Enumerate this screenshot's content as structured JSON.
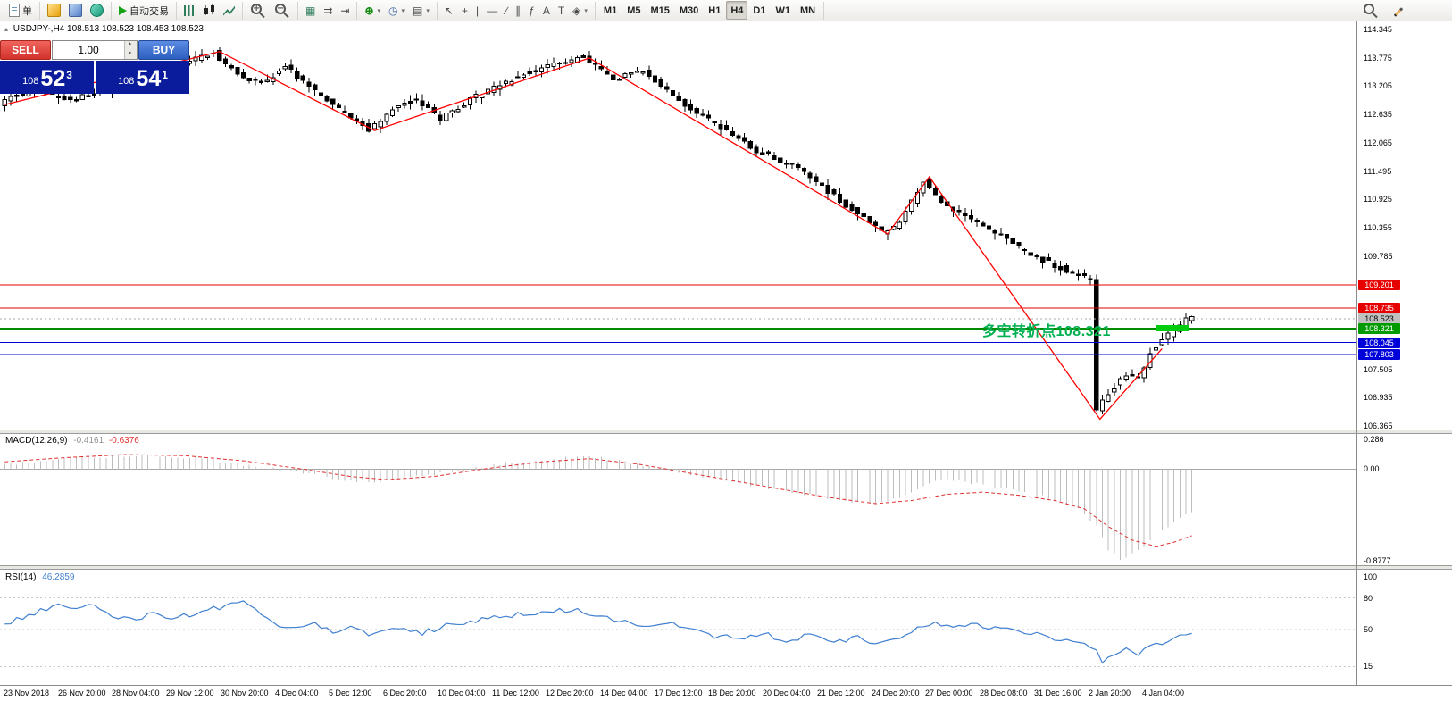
{
  "toolbar": {
    "groups": [
      {
        "name": "group-new-order",
        "items": [
          {
            "name": "new-order-button",
            "icon": "doc",
            "label": "单"
          }
        ]
      },
      {
        "name": "group-windows",
        "items": [
          {
            "name": "market-watch-button",
            "icon": "gold"
          },
          {
            "name": "data-window-button",
            "icon": "blue"
          },
          {
            "name": "mql5-community-button",
            "icon": "teal"
          }
        ]
      },
      {
        "name": "group-autotrading",
        "items": [
          {
            "name": "autotrading-button",
            "icon": "play",
            "label": "自动交易"
          }
        ]
      },
      {
        "name": "group-chart-type",
        "items": [
          {
            "name": "bar-chart-button",
            "icon": "bars"
          },
          {
            "name": "candlestick-chart-button",
            "icon": "candles"
          },
          {
            "name": "line-chart-button",
            "icon": "line"
          }
        ]
      },
      {
        "name": "group-zoom",
        "items": [
          {
            "name": "zoom-in-button",
            "icon": "zoom-in"
          },
          {
            "name": "zoom-out-button",
            "icon": "zoom-out"
          }
        ]
      },
      {
        "name": "group-arrange",
        "items": [
          {
            "name": "tile-windows-button",
            "glyph": "▦"
          },
          {
            "name": "auto-scroll-button",
            "glyph": "⇉"
          },
          {
            "name": "chart-shift-button",
            "glyph": "⇥"
          }
        ]
      },
      {
        "name": "group-insert",
        "items": [
          {
            "name": "indicators-button",
            "glyph": "⊕",
            "dropdown": true
          },
          {
            "name": "periods-button",
            "glyph": "◷",
            "dropdown": true
          },
          {
            "name": "templates-button",
            "glyph": "▤",
            "dropdown": true
          }
        ]
      },
      {
        "name": "group-tools",
        "items": [
          {
            "name": "cursor-button",
            "glyph": "↖"
          },
          {
            "name": "crosshair-button",
            "glyph": "+"
          },
          {
            "name": "vertical-line-button",
            "glyph": "|"
          },
          {
            "name": "horizontal-line-button",
            "glyph": "—"
          },
          {
            "name": "trendline-button",
            "glyph": "∕"
          },
          {
            "name": "channel-button",
            "glyph": "∥"
          },
          {
            "name": "fibonacci-button",
            "glyph": "ƒ"
          },
          {
            "name": "text-button",
            "glyph": "A"
          },
          {
            "name": "label-button",
            "glyph": "T"
          },
          {
            "name": "arrows-button",
            "glyph": "◈",
            "dropdown": true
          }
        ]
      },
      {
        "name": "group-timeframes",
        "items": [
          {
            "name": "timeframe-m1-button",
            "label": "M1",
            "tf": true
          },
          {
            "name": "timeframe-m5-button",
            "label": "M5",
            "tf": true
          },
          {
            "name": "timeframe-m15-button",
            "label": "M15",
            "tf": true
          },
          {
            "name": "timeframe-m30-button",
            "label": "M30",
            "tf": true
          },
          {
            "name": "timeframe-h1-button",
            "label": "H1",
            "tf": true
          },
          {
            "name": "timeframe-h4-button",
            "label": "H4",
            "tf": true,
            "active": true
          },
          {
            "name": "timeframe-d1-button",
            "label": "D1",
            "tf": true
          },
          {
            "name": "timeframe-w1-button",
            "label": "W1",
            "tf": true
          },
          {
            "name": "timeframe-mn-button",
            "label": "MN",
            "tf": true
          }
        ]
      }
    ],
    "right_items": [
      {
        "name": "search-button",
        "icon": "zoom"
      },
      {
        "name": "pencil-button",
        "icon": "pencil"
      }
    ]
  },
  "chart": {
    "header": {
      "symbol": "USDJPY-,H4",
      "ohlc": "108.513 108.523 108.453 108.523"
    },
    "trade_panel": {
      "sell_label": "SELL",
      "buy_label": "BUY",
      "volume": "1.00",
      "sell_price": {
        "prefix": "108",
        "big": "52",
        "sup": "3"
      },
      "buy_price": {
        "prefix": "108",
        "big": "54",
        "sup": "1"
      }
    },
    "annotation": {
      "text": "多空转折点108.321",
      "price": 108.321,
      "color": "#00B050",
      "marker_color": "#00CC10"
    }
  },
  "chart_data": {
    "type": "candlestick",
    "symbol": "USDJPY-",
    "timeframe": "H4",
    "last_ohlc": {
      "open": 108.513,
      "high": 108.523,
      "low": 108.453,
      "close": 108.523
    },
    "price_axis": {
      "max": 114.345,
      "min": 106.365,
      "ticks": [
        "114.345",
        "113.775",
        "113.205",
        "112.635",
        "112.065",
        "111.495",
        "110.925",
        "110.355",
        "109.785",
        "107.505",
        "106.935",
        "106.365"
      ]
    },
    "levels": [
      {
        "price": 109.201,
        "label": "109.201",
        "color": "#E60000",
        "style": "solid",
        "width": 1,
        "label_bg": "#E60000",
        "label_fg": "#FFFFFF"
      },
      {
        "price": 108.735,
        "label": "108.735",
        "color": "#E60000",
        "style": "solid",
        "width": 1,
        "label_bg": "#E60000",
        "label_fg": "#FFFFFF"
      },
      {
        "price": 108.523,
        "label": "108.523",
        "color": "#A8A8A8",
        "style": "dotted",
        "width": 1,
        "label_bg": "#C0C0C0",
        "label_fg": "#000000",
        "role": "current-price"
      },
      {
        "price": 108.321,
        "label": "108.321",
        "color": "#008A00",
        "style": "solid",
        "width": 2,
        "label_bg": "#009B00",
        "label_fg": "#FFFFFF"
      },
      {
        "price": 108.045,
        "label": "108.045",
        "color": "#0000D8",
        "style": "solid",
        "width": 1,
        "label_bg": "#0000D8",
        "label_fg": "#FFFFFF"
      },
      {
        "price": 107.803,
        "label": "107.803",
        "color": "#0000D8",
        "style": "solid",
        "width": 1,
        "label_bg": "#0000D8",
        "label_fg": "#FFFFFF"
      }
    ],
    "num_candles": 200,
    "candle_colors": {
      "bull_fill": "#FFFFFF",
      "bear_fill": "#000000",
      "outline": "#000000"
    },
    "price_path": [
      [
        0,
        112.85
      ],
      [
        6,
        113.15
      ],
      [
        12,
        112.92
      ],
      [
        20,
        113.2
      ],
      [
        28,
        113.55
      ],
      [
        36,
        113.88
      ],
      [
        40,
        113.45
      ],
      [
        44,
        113.25
      ],
      [
        48,
        113.6
      ],
      [
        55,
        112.9
      ],
      [
        62,
        112.32
      ],
      [
        66,
        112.75
      ],
      [
        70,
        112.95
      ],
      [
        74,
        112.55
      ],
      [
        80,
        113.0
      ],
      [
        88,
        113.45
      ],
      [
        98,
        113.8
      ],
      [
        103,
        113.35
      ],
      [
        108,
        113.5
      ],
      [
        114,
        112.9
      ],
      [
        120,
        112.45
      ],
      [
        127,
        111.9
      ],
      [
        134,
        111.55
      ],
      [
        141,
        110.9
      ],
      [
        148,
        110.28
      ],
      [
        151,
        110.45
      ],
      [
        155,
        111.3
      ],
      [
        158,
        110.85
      ],
      [
        163,
        110.55
      ],
      [
        168,
        110.2
      ],
      [
        173,
        109.8
      ],
      [
        178,
        109.55
      ],
      [
        183,
        109.3
      ],
      [
        184,
        106.7
      ],
      [
        185,
        106.9
      ],
      [
        187,
        107.15
      ],
      [
        189,
        107.4
      ],
      [
        191,
        107.3
      ],
      [
        193,
        107.85
      ],
      [
        195,
        108.1
      ],
      [
        197,
        108.3
      ],
      [
        199,
        108.52
      ],
      [
        200,
        108.52
      ]
    ],
    "zigzag": {
      "color": "#FF0000",
      "points": [
        [
          0,
          112.83
        ],
        [
          36,
          113.9
        ],
        [
          62,
          112.31
        ],
        [
          98,
          113.77
        ],
        [
          148,
          110.23
        ],
        [
          155,
          111.38
        ],
        [
          183.6,
          106.5
        ],
        [
          194,
          107.92
        ]
      ]
    },
    "time_labels": [
      "23 Nov 2018",
      "26 Nov 20:00",
      "28 Nov 04:00",
      "29 Nov 12:00",
      "30 Nov 20:00",
      "4 Dec 04:00",
      "5 Dec 12:00",
      "6 Dec 20:00",
      "10 Dec 04:00",
      "11 Dec 12:00",
      "12 Dec 20:00",
      "14 Dec 04:00",
      "17 Dec 12:00",
      "18 Dec 20:00",
      "20 Dec 04:00",
      "21 Dec 12:00",
      "24 Dec 20:00",
      "27 Dec 00:00",
      "28 Dec 08:00",
      "31 Dec 16:00",
      "2 Jan 20:00",
      "4 Jan 04:00"
    ],
    "macd": {
      "label": "MACD(12,26,9)",
      "value_main": "-0.4161",
      "value_signal": "-0.6376",
      "main_color": "#BDBDBD",
      "main_value_color": "#909090",
      "signal_color": "#E03030",
      "axis_ticks": [
        0.286,
        0,
        -0.8777
      ],
      "axis_tick_labels": [
        "0.286",
        "0.00",
        "-0.8777"
      ],
      "range": [
        -0.8777,
        0.286
      ],
      "hist_path": [
        [
          0,
          0.04
        ],
        [
          8,
          0.09
        ],
        [
          16,
          0.12
        ],
        [
          24,
          0.13
        ],
        [
          32,
          0.11
        ],
        [
          40,
          0.04
        ],
        [
          48,
          -0.02
        ],
        [
          56,
          -0.1
        ],
        [
          62,
          -0.13
        ],
        [
          68,
          -0.08
        ],
        [
          76,
          -0.02
        ],
        [
          84,
          0.06
        ],
        [
          92,
          0.1
        ],
        [
          98,
          0.12
        ],
        [
          104,
          0.07
        ],
        [
          110,
          0
        ],
        [
          116,
          -0.06
        ],
        [
          124,
          -0.14
        ],
        [
          132,
          -0.22
        ],
        [
          140,
          -0.3
        ],
        [
          146,
          -0.33
        ],
        [
          150,
          -0.27
        ],
        [
          154,
          -0.15
        ],
        [
          158,
          -0.1
        ],
        [
          163,
          -0.14
        ],
        [
          168,
          -0.19
        ],
        [
          174,
          -0.26
        ],
        [
          180,
          -0.38
        ],
        [
          183,
          -0.55
        ],
        [
          185,
          -0.78
        ],
        [
          187,
          -0.86
        ],
        [
          189,
          -0.82
        ],
        [
          191,
          -0.74
        ],
        [
          193,
          -0.64
        ],
        [
          195,
          -0.55
        ],
        [
          197,
          -0.47
        ],
        [
          199,
          -0.42
        ]
      ],
      "signal_path": [
        [
          0,
          0.07
        ],
        [
          10,
          0.11
        ],
        [
          20,
          0.14
        ],
        [
          30,
          0.13
        ],
        [
          40,
          0.08
        ],
        [
          50,
          0
        ],
        [
          58,
          -0.07
        ],
        [
          64,
          -0.1
        ],
        [
          72,
          -0.07
        ],
        [
          80,
          0
        ],
        [
          90,
          0.07
        ],
        [
          98,
          0.1
        ],
        [
          106,
          0.05
        ],
        [
          114,
          -0.03
        ],
        [
          122,
          -0.11
        ],
        [
          130,
          -0.19
        ],
        [
          138,
          -0.27
        ],
        [
          146,
          -0.33
        ],
        [
          152,
          -0.3
        ],
        [
          158,
          -0.24
        ],
        [
          164,
          -0.22
        ],
        [
          170,
          -0.25
        ],
        [
          176,
          -0.3
        ],
        [
          181,
          -0.38
        ],
        [
          185,
          -0.55
        ],
        [
          189,
          -0.68
        ],
        [
          193,
          -0.74
        ],
        [
          196,
          -0.7
        ],
        [
          199,
          -0.6376
        ]
      ]
    },
    "rsi": {
      "label": "RSI(14)",
      "value": "46.2859",
      "color": "#4080D0",
      "axis_ticks": [
        100,
        80,
        50,
        15
      ],
      "axis_tick_labels": [
        "100",
        "80",
        "50",
        "15"
      ],
      "levels": [
        80,
        50,
        15
      ],
      "range": [
        0,
        100
      ],
      "path": [
        [
          0,
          55
        ],
        [
          3,
          62
        ],
        [
          6,
          68
        ],
        [
          9,
          73
        ],
        [
          12,
          68
        ],
        [
          15,
          73
        ],
        [
          18,
          64
        ],
        [
          21,
          59
        ],
        [
          25,
          65
        ],
        [
          29,
          61
        ],
        [
          33,
          67
        ],
        [
          37,
          72
        ],
        [
          40,
          76
        ],
        [
          43,
          66
        ],
        [
          46,
          54
        ],
        [
          49,
          50
        ],
        [
          52,
          56
        ],
        [
          55,
          48
        ],
        [
          58,
          53
        ],
        [
          62,
          44
        ],
        [
          66,
          52
        ],
        [
          70,
          47
        ],
        [
          75,
          55
        ],
        [
          80,
          60
        ],
        [
          85,
          63
        ],
        [
          90,
          67
        ],
        [
          95,
          69
        ],
        [
          99,
          64
        ],
        [
          103,
          59
        ],
        [
          107,
          54
        ],
        [
          111,
          58
        ],
        [
          115,
          49
        ],
        [
          119,
          44
        ],
        [
          123,
          42
        ],
        [
          127,
          46
        ],
        [
          131,
          40
        ],
        [
          135,
          44
        ],
        [
          139,
          38
        ],
        [
          143,
          42
        ],
        [
          147,
          36
        ],
        [
          150,
          41
        ],
        [
          153,
          50
        ],
        [
          156,
          56
        ],
        [
          159,
          52
        ],
        [
          162,
          56
        ],
        [
          165,
          50
        ],
        [
          168,
          53
        ],
        [
          172,
          46
        ],
        [
          176,
          42
        ],
        [
          180,
          39
        ],
        [
          183,
          33
        ],
        [
          184,
          18
        ],
        [
          186,
          26
        ],
        [
          188,
          31
        ],
        [
          190,
          28
        ],
        [
          193,
          36
        ],
        [
          196,
          41
        ],
        [
          199,
          46.2859
        ]
      ]
    }
  }
}
